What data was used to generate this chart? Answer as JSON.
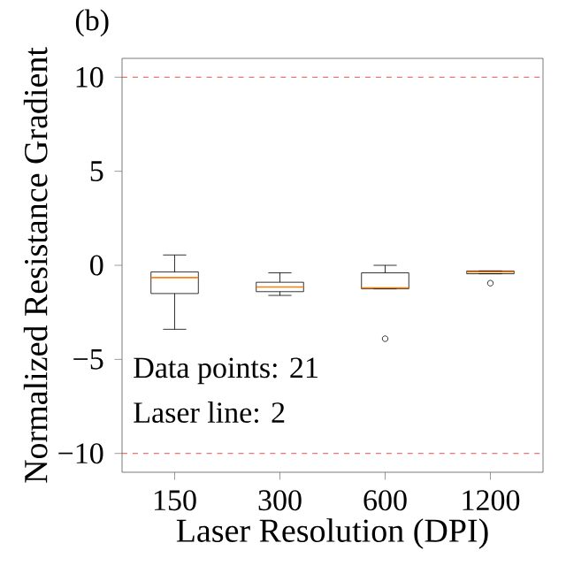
{
  "chart_data": {
    "type": "box",
    "title": "(b)",
    "xlabel": "Laser Resolution (DPI)",
    "ylabel": "Normalized Resistance Gradient",
    "categories": [
      "150",
      "300",
      "600",
      "1200"
    ],
    "boxes": [
      {
        "low": -3.4,
        "q1": -1.5,
        "median": -0.65,
        "q3": -0.35,
        "high": 0.55
      },
      {
        "low": -1.6,
        "q1": -1.4,
        "median": -1.15,
        "q3": -0.9,
        "high": -0.4
      },
      {
        "low": -1.25,
        "q1": -1.25,
        "median": -1.2,
        "q3": -0.4,
        "high": 0.0,
        "outliers": [
          -3.9
        ]
      },
      {
        "low": -0.45,
        "q1": -0.45,
        "median": -0.35,
        "q3": -0.3,
        "high": -0.3,
        "outliers": [
          -0.95
        ]
      }
    ],
    "ylim": [
      -11,
      11
    ],
    "yticks": [
      {
        "value": -10,
        "label": "−10"
      },
      {
        "value": -5,
        "label": "−5"
      },
      0,
      5,
      10
    ],
    "ref_lines": [
      {
        "axis": "y",
        "value": 10,
        "color": "#d62728",
        "line_style": "dashed"
      },
      {
        "axis": "y",
        "value": -10,
        "color": "#d62728",
        "line_style": "dashed"
      }
    ],
    "annotations": [
      "Data points: 21",
      "Laser line: 2"
    ],
    "grid": false
  }
}
